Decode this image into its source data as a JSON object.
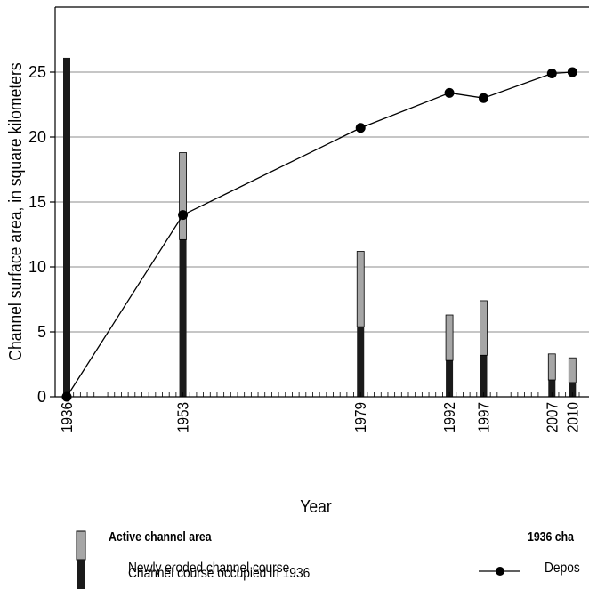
{
  "chart_data": {
    "type": "bar",
    "xlabel": "Year",
    "ylabel": "Channel surface area, in square kilometers",
    "ylim": [
      0,
      30
    ],
    "xlim": [
      1936,
      2011
    ],
    "yticks": [
      0,
      5,
      10,
      15,
      20,
      25
    ],
    "grid": true,
    "x_tick_labels": [
      "1936",
      "1953",
      "1979",
      "1992",
      "1997",
      "2007",
      "2010"
    ],
    "years": [
      1936,
      1953,
      1979,
      1992,
      1997,
      2007,
      2010
    ],
    "series": [
      {
        "name": "Channel course occupied in 1936",
        "role": "bar-stack-bottom",
        "color": "#1a1a1a",
        "values": [
          26.1,
          12.1,
          5.4,
          2.8,
          3.2,
          1.3,
          1.1
        ]
      },
      {
        "name": "Newly eroded channel course",
        "role": "bar-stack-top",
        "color": "#a6a6a6",
        "values": [
          0,
          6.7,
          5.8,
          3.5,
          4.2,
          2.0,
          1.9
        ]
      },
      {
        "name": "Deposits",
        "role": "line",
        "color": "#000000",
        "values": [
          0,
          14.0,
          20.7,
          23.4,
          23.0,
          24.9,
          25.0
        ]
      }
    ]
  },
  "legend": {
    "active_title": "Active channel area",
    "newly_eroded": "Newly eroded channel course",
    "occupied_1936": "Channel course occupied in 1936",
    "line_title": "1936 cha",
    "line_label": "Depos"
  }
}
